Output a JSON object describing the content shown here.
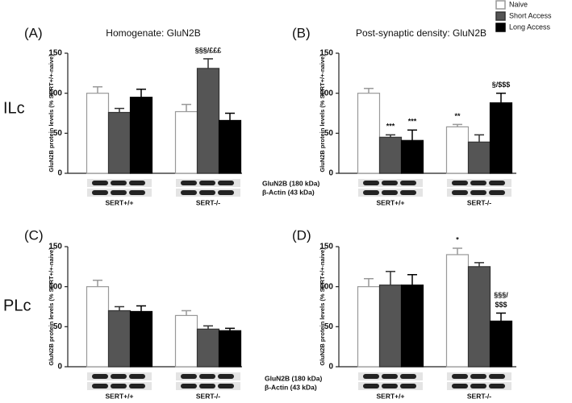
{
  "legend": [
    {
      "name": "Naive",
      "color": "#ffffff"
    },
    {
      "name": "Short Access",
      "color": "#555555"
    },
    {
      "name": "Long Access",
      "color": "#000000"
    }
  ],
  "row_labels": [
    "ILc",
    "PLc"
  ],
  "chart_data": [
    {
      "type": "bar",
      "panel": "(A)",
      "title": "Homogenate: GluN2B",
      "ylabel": "GluN2B protein levels (% SERT+/+-naive)",
      "categories": [
        "SERT+/+",
        "SERT-/-"
      ],
      "ylim": [
        0,
        150
      ],
      "yticks": [
        0,
        50,
        100,
        150
      ],
      "series": [
        {
          "values": [
            100,
            77
          ],
          "errors": [
            8,
            9
          ],
          "annotations": [
            null,
            null
          ]
        },
        {
          "values": [
            76,
            131
          ],
          "errors": [
            5,
            12
          ],
          "annotations": [
            null,
            "§§§/£££"
          ]
        },
        {
          "values": [
            95,
            66
          ],
          "errors": [
            10,
            9
          ],
          "annotations": [
            null,
            null
          ]
        }
      ]
    },
    {
      "type": "bar",
      "panel": "(B)",
      "title": "Post-synaptic density: GluN2B",
      "ylabel": "GluN2B protein levels (% SERT+/+-naive)",
      "categories": [
        "SERT+/+",
        "SERT-/-"
      ],
      "ylim": [
        0,
        150
      ],
      "yticks": [
        0,
        50,
        100,
        150
      ],
      "blot_labels": [
        "GluN2B (180 kDa)",
        "β-Actin (43 kDa)"
      ],
      "series": [
        {
          "values": [
            100,
            58
          ],
          "errors": [
            6,
            3
          ],
          "annotations": [
            null,
            "**"
          ]
        },
        {
          "values": [
            45,
            39
          ],
          "errors": [
            3,
            9
          ],
          "annotations": [
            "***",
            null
          ]
        },
        {
          "values": [
            41,
            88
          ],
          "errors": [
            13,
            12
          ],
          "annotations": [
            "***",
            "§/$$$"
          ]
        }
      ]
    },
    {
      "type": "bar",
      "panel": "(C)",
      "ylabel": "GluN2B protein levels (% SERT+/+-naive)",
      "categories": [
        "SERT+/+",
        "SERT-/-"
      ],
      "ylim": [
        0,
        150
      ],
      "yticks": [
        0,
        50,
        100,
        150
      ],
      "series": [
        {
          "values": [
            100,
            64
          ],
          "errors": [
            8,
            6
          ],
          "annotations": [
            null,
            null
          ]
        },
        {
          "values": [
            70,
            47
          ],
          "errors": [
            5,
            4
          ],
          "annotations": [
            null,
            null
          ]
        },
        {
          "values": [
            69,
            45
          ],
          "errors": [
            7,
            3
          ],
          "annotations": [
            null,
            null
          ]
        }
      ]
    },
    {
      "type": "bar",
      "panel": "(D)",
      "ylabel": "GluN2B protein levels (% SERT+/+-naive)",
      "categories": [
        "SERT+/+",
        "SERT-/-"
      ],
      "ylim": [
        0,
        150
      ],
      "yticks": [
        0,
        50,
        100,
        150
      ],
      "blot_labels": [
        "GluN2B (180 kDa)",
        "β-Actin (43 kDa)"
      ],
      "series": [
        {
          "values": [
            100,
            140
          ],
          "errors": [
            10,
            8
          ],
          "annotations": [
            null,
            "*"
          ]
        },
        {
          "values": [
            102,
            125
          ],
          "errors": [
            17,
            5
          ],
          "annotations": [
            null,
            null
          ]
        },
        {
          "values": [
            102,
            57
          ],
          "errors": [
            13,
            10
          ],
          "annotations": [
            null,
            [
              "§§§/",
              "$$$"
            ]
          ]
        }
      ]
    }
  ]
}
